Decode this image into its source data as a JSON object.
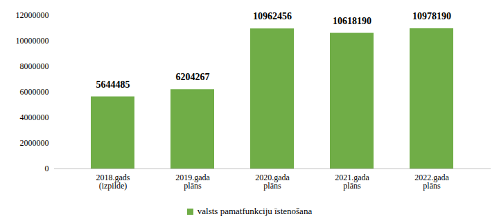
{
  "chart_data": {
    "type": "bar",
    "categories": [
      "2018.gads (izpilde)",
      "2019.gada plāns",
      "2020.gada plāns",
      "2021.gada plāns",
      "2022.gada plāns"
    ],
    "series": [
      {
        "name": "valsts pamatfunkciju īstenošana",
        "color": "#70ad47",
        "values": [
          5644485,
          6204267,
          10962456,
          10618190,
          10978190
        ]
      }
    ],
    "ylim": [
      0,
      12000000
    ],
    "yticks": [
      0,
      2000000,
      4000000,
      6000000,
      8000000,
      10000000,
      12000000
    ],
    "grid": false,
    "data_labels": true,
    "legend": "bottom"
  }
}
